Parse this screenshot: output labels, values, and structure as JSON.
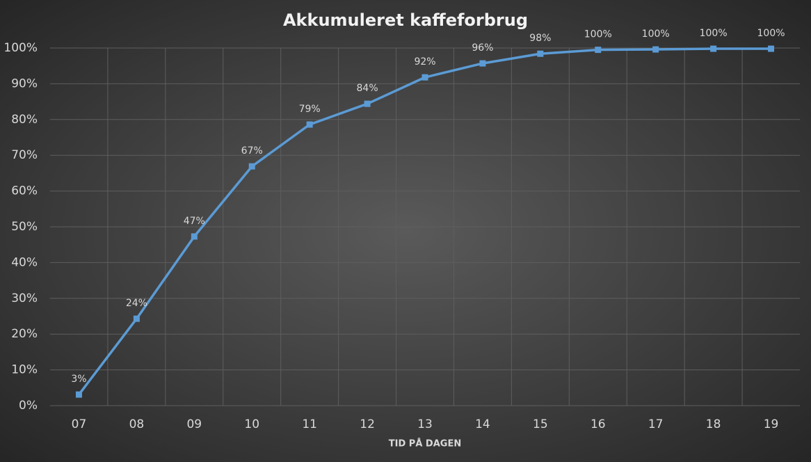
{
  "chart_data": {
    "type": "line",
    "title": "Akkumuleret kaffeforbrug",
    "x_label": "TID PÅ DAGEN",
    "categories": [
      "07",
      "08",
      "09",
      "10",
      "11",
      "12",
      "13",
      "14",
      "15",
      "16",
      "17",
      "18",
      "19"
    ],
    "series": [
      {
        "name": "Akkumuleret kaffeforbrug",
        "color": "#5b9bd5",
        "values": [
          3.1,
          24.3,
          47.3,
          66.9,
          78.6,
          84.4,
          91.8,
          95.7,
          98.4,
          99.5,
          99.6,
          99.8,
          99.8
        ],
        "value_labels": [
          "3%",
          "24%",
          "47%",
          "67%",
          "79%",
          "84%",
          "92%",
          "96%",
          "98%",
          "100%",
          "100%",
          "100%",
          "100%"
        ]
      }
    ],
    "ylim": [
      0,
      100
    ],
    "yticks": [
      {
        "value": 0,
        "label": "0%"
      },
      {
        "value": 10,
        "label": "10%"
      },
      {
        "value": 20,
        "label": "20%"
      },
      {
        "value": 30,
        "label": "30%"
      },
      {
        "value": 40,
        "label": "40%"
      },
      {
        "value": 50,
        "label": "50%"
      },
      {
        "value": 60,
        "label": "60%"
      },
      {
        "value": 70,
        "label": "70%"
      },
      {
        "value": 80,
        "label": "80%"
      },
      {
        "value": 90,
        "label": "90%"
      },
      {
        "value": 100,
        "label": "100%"
      }
    ],
    "grid": true
  }
}
